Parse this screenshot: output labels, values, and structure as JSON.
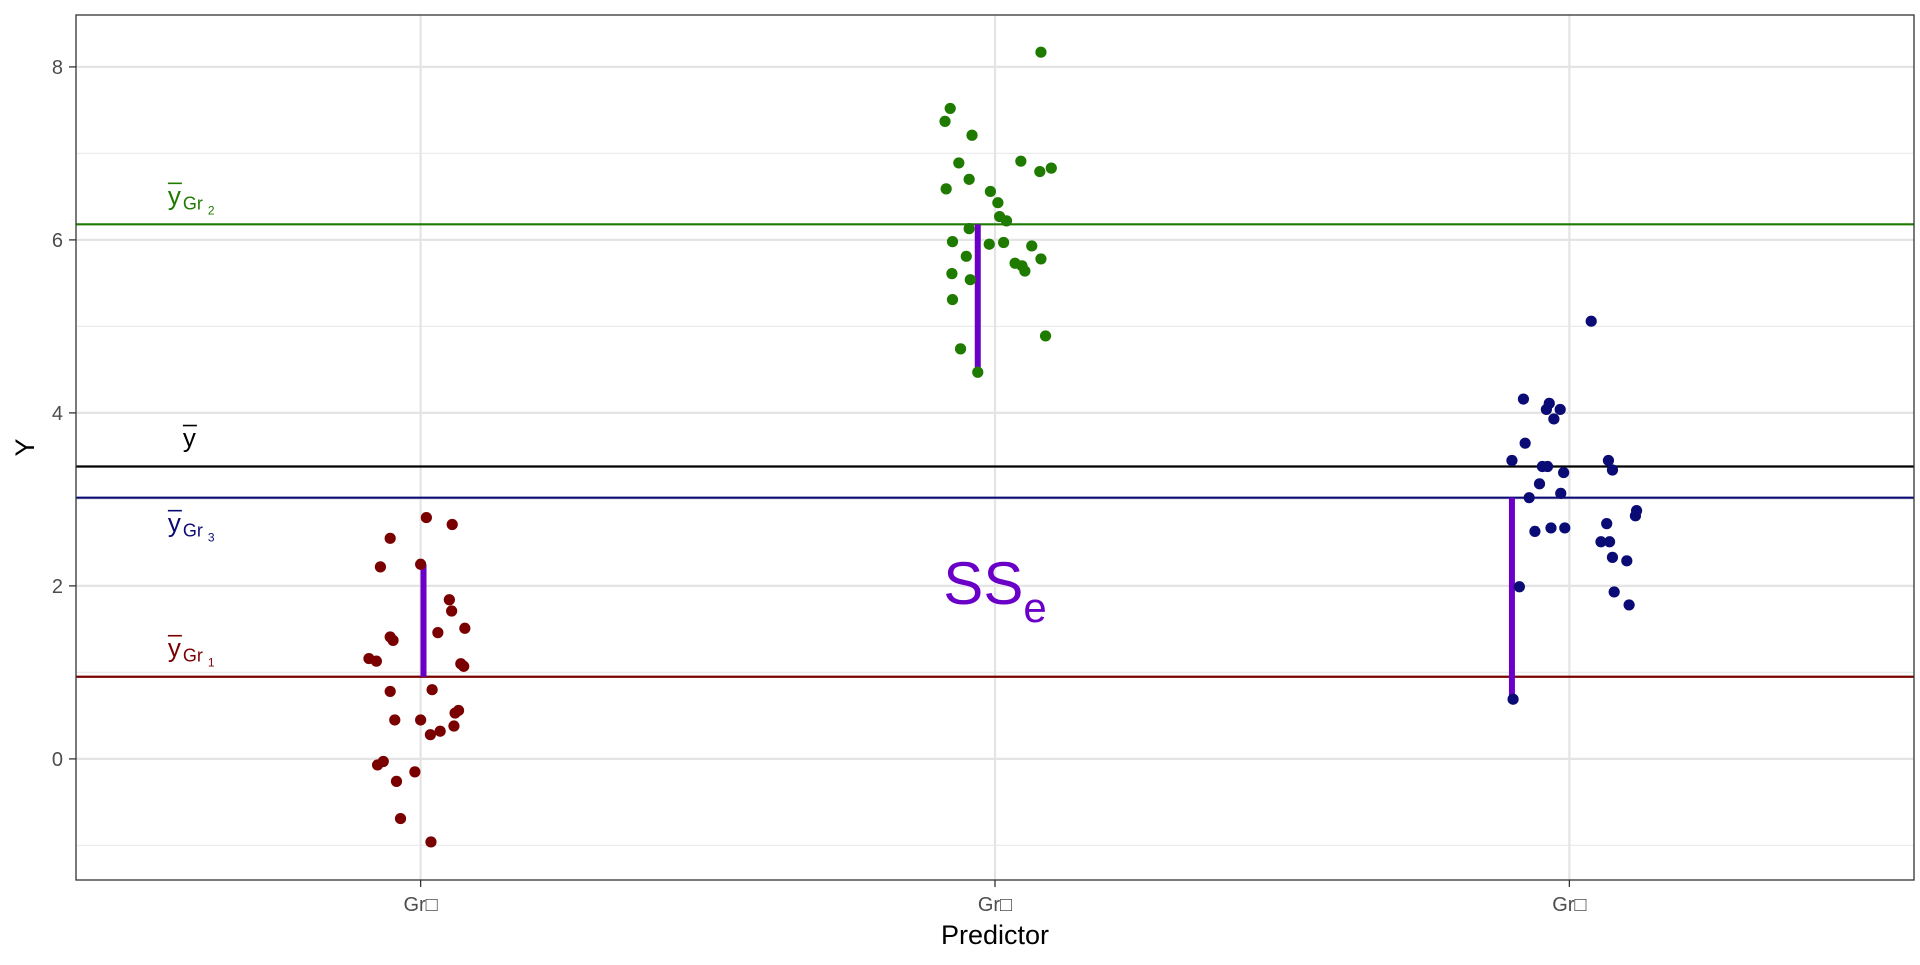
{
  "chart_data": {
    "type": "scatter",
    "xlabel": "Predictor",
    "ylabel": "Y",
    "categories": [
      "Gr□",
      "Gr□",
      "Gr□"
    ],
    "ylim": [
      -1.4,
      8.6
    ],
    "y_ticks": [
      0,
      2,
      4,
      6,
      8
    ],
    "grid": true,
    "colors": {
      "group1": "#7a0000",
      "group2": "#1f7a00",
      "group3": "#0b0b75",
      "grand_mean": "#000000",
      "segment": "#6a00c8"
    },
    "grand_mean": {
      "label": "y",
      "value": 3.38,
      "color": "#000000"
    },
    "group_means": [
      {
        "label": "y",
        "subscript": "Gr",
        "index": "1",
        "value": 0.95,
        "color": "#7a0000"
      },
      {
        "label": "y",
        "subscript": "Gr",
        "index": "2",
        "value": 6.18,
        "color": "#1f7a00"
      },
      {
        "label": "y",
        "subscript": "Gr",
        "index": "3",
        "value": 3.02,
        "color": "#0b0b75"
      }
    ],
    "annotation": {
      "text": "SS",
      "subscript": "e",
      "x": 2,
      "y": 2.0,
      "color": "#6a00c8"
    },
    "residual_segments": [
      {
        "x": 1.005,
        "from": 0.95,
        "to": 2.25
      },
      {
        "x": 1.97,
        "from": 6.18,
        "to": 4.47
      },
      {
        "x": 2.9,
        "from": 3.02,
        "to": 0.69
      }
    ],
    "series": [
      {
        "group": 1,
        "color": "#7a0000",
        "points": [
          [
            0.91,
            1.16
          ],
          [
            0.923,
            1.13
          ],
          [
            0.93,
            2.22
          ],
          [
            0.925,
            -0.07
          ],
          [
            0.935,
            -0.03
          ],
          [
            0.947,
            2.55
          ],
          [
            0.947,
            1.41
          ],
          [
            0.952,
            1.37
          ],
          [
            0.947,
            0.78
          ],
          [
            0.958,
            -0.26
          ],
          [
            0.965,
            -0.69
          ],
          [
            0.955,
            0.45
          ],
          [
            0.99,
            -0.15
          ],
          [
            1.0,
            2.25
          ],
          [
            1.0,
            0.45
          ],
          [
            1.01,
            2.79
          ],
          [
            1.018,
            -0.96
          ],
          [
            1.017,
            0.28
          ],
          [
            1.02,
            0.8
          ],
          [
            1.03,
            1.46
          ],
          [
            1.034,
            0.32
          ],
          [
            1.05,
            1.84
          ],
          [
            1.054,
            1.71
          ],
          [
            1.055,
            2.71
          ],
          [
            1.06,
            0.53
          ],
          [
            1.058,
            0.38
          ],
          [
            1.066,
            0.56
          ],
          [
            1.07,
            1.1
          ],
          [
            1.075,
            1.07
          ],
          [
            1.077,
            1.51
          ]
        ]
      },
      {
        "group": 2,
        "color": "#1f7a00",
        "points": [
          [
            1.913,
            7.37
          ],
          [
            1.922,
            7.52
          ],
          [
            1.915,
            6.59
          ],
          [
            1.926,
            5.98
          ],
          [
            1.925,
            5.61
          ],
          [
            1.926,
            5.31
          ],
          [
            1.937,
            6.89
          ],
          [
            1.94,
            4.74
          ],
          [
            1.95,
            5.81
          ],
          [
            1.955,
            6.13
          ],
          [
            1.957,
            5.54
          ],
          [
            1.955,
            6.7
          ],
          [
            1.96,
            7.21
          ],
          [
            1.97,
            4.47
          ],
          [
            1.99,
            5.95
          ],
          [
            1.992,
            6.56
          ],
          [
            2.005,
            6.43
          ],
          [
            2.008,
            6.27
          ],
          [
            2.015,
            5.97
          ],
          [
            2.02,
            6.22
          ],
          [
            2.035,
            5.73
          ],
          [
            2.047,
            5.7
          ],
          [
            2.045,
            6.91
          ],
          [
            2.052,
            5.64
          ],
          [
            2.064,
            5.93
          ],
          [
            2.078,
            6.79
          ],
          [
            2.08,
            8.17
          ],
          [
            2.08,
            5.78
          ],
          [
            2.088,
            4.89
          ],
          [
            2.098,
            6.83
          ]
        ]
      },
      {
        "group": 3,
        "color": "#0b0b75",
        "points": [
          [
            2.9,
            3.45
          ],
          [
            2.902,
            0.69
          ],
          [
            2.913,
            1.99
          ],
          [
            2.92,
            4.16
          ],
          [
            2.923,
            3.65
          ],
          [
            2.93,
            3.02
          ],
          [
            2.94,
            2.63
          ],
          [
            2.948,
            3.18
          ],
          [
            2.953,
            3.38
          ],
          [
            2.96,
            4.04
          ],
          [
            2.962,
            3.38
          ],
          [
            2.965,
            4.11
          ],
          [
            2.968,
            2.67
          ],
          [
            2.973,
            3.93
          ],
          [
            2.984,
            4.04
          ],
          [
            2.985,
            3.07
          ],
          [
            2.992,
            2.67
          ],
          [
            2.99,
            3.31
          ],
          [
            3.038,
            5.06
          ],
          [
            3.055,
            2.51
          ],
          [
            3.065,
            2.72
          ],
          [
            3.07,
            2.51
          ],
          [
            3.068,
            3.45
          ],
          [
            3.075,
            2.33
          ],
          [
            3.075,
            3.34
          ],
          [
            3.078,
            1.93
          ],
          [
            3.1,
            2.29
          ],
          [
            3.104,
            1.78
          ],
          [
            3.115,
            2.81
          ],
          [
            3.117,
            2.87
          ]
        ]
      }
    ]
  }
}
